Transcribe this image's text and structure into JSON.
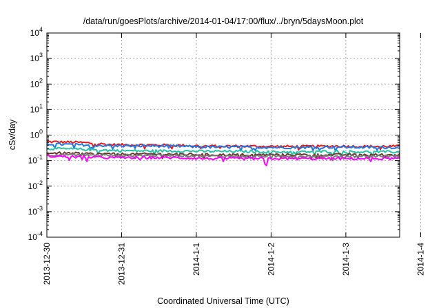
{
  "chart_data": {
    "type": "line",
    "title": "/data/run/goesPlots/archive/2014-01-04/17:00/flux/../bryn/5daysMoon.plot",
    "xlabel": "Coordinated Universal Time (UTC)",
    "ylabel": "cSv/day",
    "y_scale": "log",
    "ylim": [
      0.0001,
      10000
    ],
    "y_ticks": [
      {
        "base": "10",
        "exp": "4"
      },
      {
        "base": "10",
        "exp": "3"
      },
      {
        "base": "10",
        "exp": "2"
      },
      {
        "base": "10",
        "exp": "1"
      },
      {
        "base": "10",
        "exp": "0"
      },
      {
        "base": "10",
        "exp": "-1"
      },
      {
        "base": "10",
        "exp": "-2"
      },
      {
        "base": "10",
        "exp": "-3"
      },
      {
        "base": "10",
        "exp": "-4"
      }
    ],
    "x_ticks": [
      "2013-12-30",
      "2013-12-31",
      "2014-1-1",
      "2014-1-2",
      "2014-1-3",
      "2014-1-4"
    ],
    "xlim_days": [
      0,
      4.72
    ],
    "grid": true,
    "series": [
      {
        "color": "#e8191a",
        "base_values": [
          0.55,
          0.52,
          0.42,
          0.41,
          0.4,
          0.37,
          0.37,
          0.36,
          0.36,
          0.37,
          0.36,
          0.37
        ]
      },
      {
        "color": "#1f77e6",
        "base_values": [
          0.45,
          0.42,
          0.38,
          0.38,
          0.37,
          0.34,
          0.34,
          0.33,
          0.33,
          0.34,
          0.33,
          0.33
        ]
      },
      {
        "color": "#23c3a4",
        "base_values": [
          0.3,
          0.28,
          0.25,
          0.24,
          0.24,
          0.23,
          0.23,
          0.22,
          0.22,
          0.23,
          0.22,
          0.22
        ]
      },
      {
        "color": "#6b3a2a",
        "base_values": [
          0.2,
          0.19,
          0.18,
          0.18,
          0.18,
          0.17,
          0.17,
          0.17,
          0.17,
          0.17,
          0.17,
          0.17
        ]
      },
      {
        "color": "#7a7a7a",
        "base_values": [
          0.17,
          0.17,
          0.16,
          0.16,
          0.16,
          0.15,
          0.15,
          0.15,
          0.15,
          0.15,
          0.15,
          0.15
        ]
      },
      {
        "color": "#ff00ff",
        "base_values": [
          0.15,
          0.14,
          0.13,
          0.13,
          0.13,
          0.12,
          0.12,
          0.12,
          0.12,
          0.12,
          0.12,
          0.12
        ]
      }
    ]
  }
}
